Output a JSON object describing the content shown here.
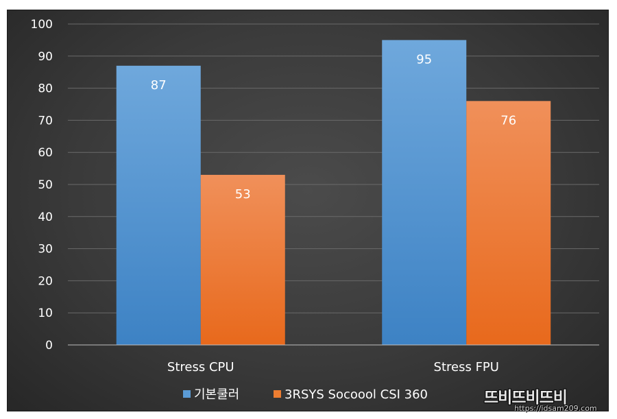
{
  "chart_data": {
    "type": "bar",
    "categories": [
      "Stress CPU",
      "Stress FPU"
    ],
    "series": [
      {
        "name": "기본쿨러",
        "values": [
          87,
          95
        ],
        "color": "#5b9bd5"
      },
      {
        "name": "3RSYS Socoool CSI 360",
        "values": [
          53,
          76
        ],
        "color": "#ed7d31"
      }
    ],
    "y_ticks": [
      "0",
      "10",
      "20",
      "30",
      "40",
      "50",
      "60",
      "70",
      "80",
      "90",
      "100"
    ],
    "ylim": [
      0,
      100
    ],
    "grid": true,
    "legend_position": "bottom",
    "data_labels": true,
    "background": "dark"
  },
  "watermark": {
    "logo_text": "뜨비뜨비뜨비",
    "url": "https://idsam209.com"
  }
}
